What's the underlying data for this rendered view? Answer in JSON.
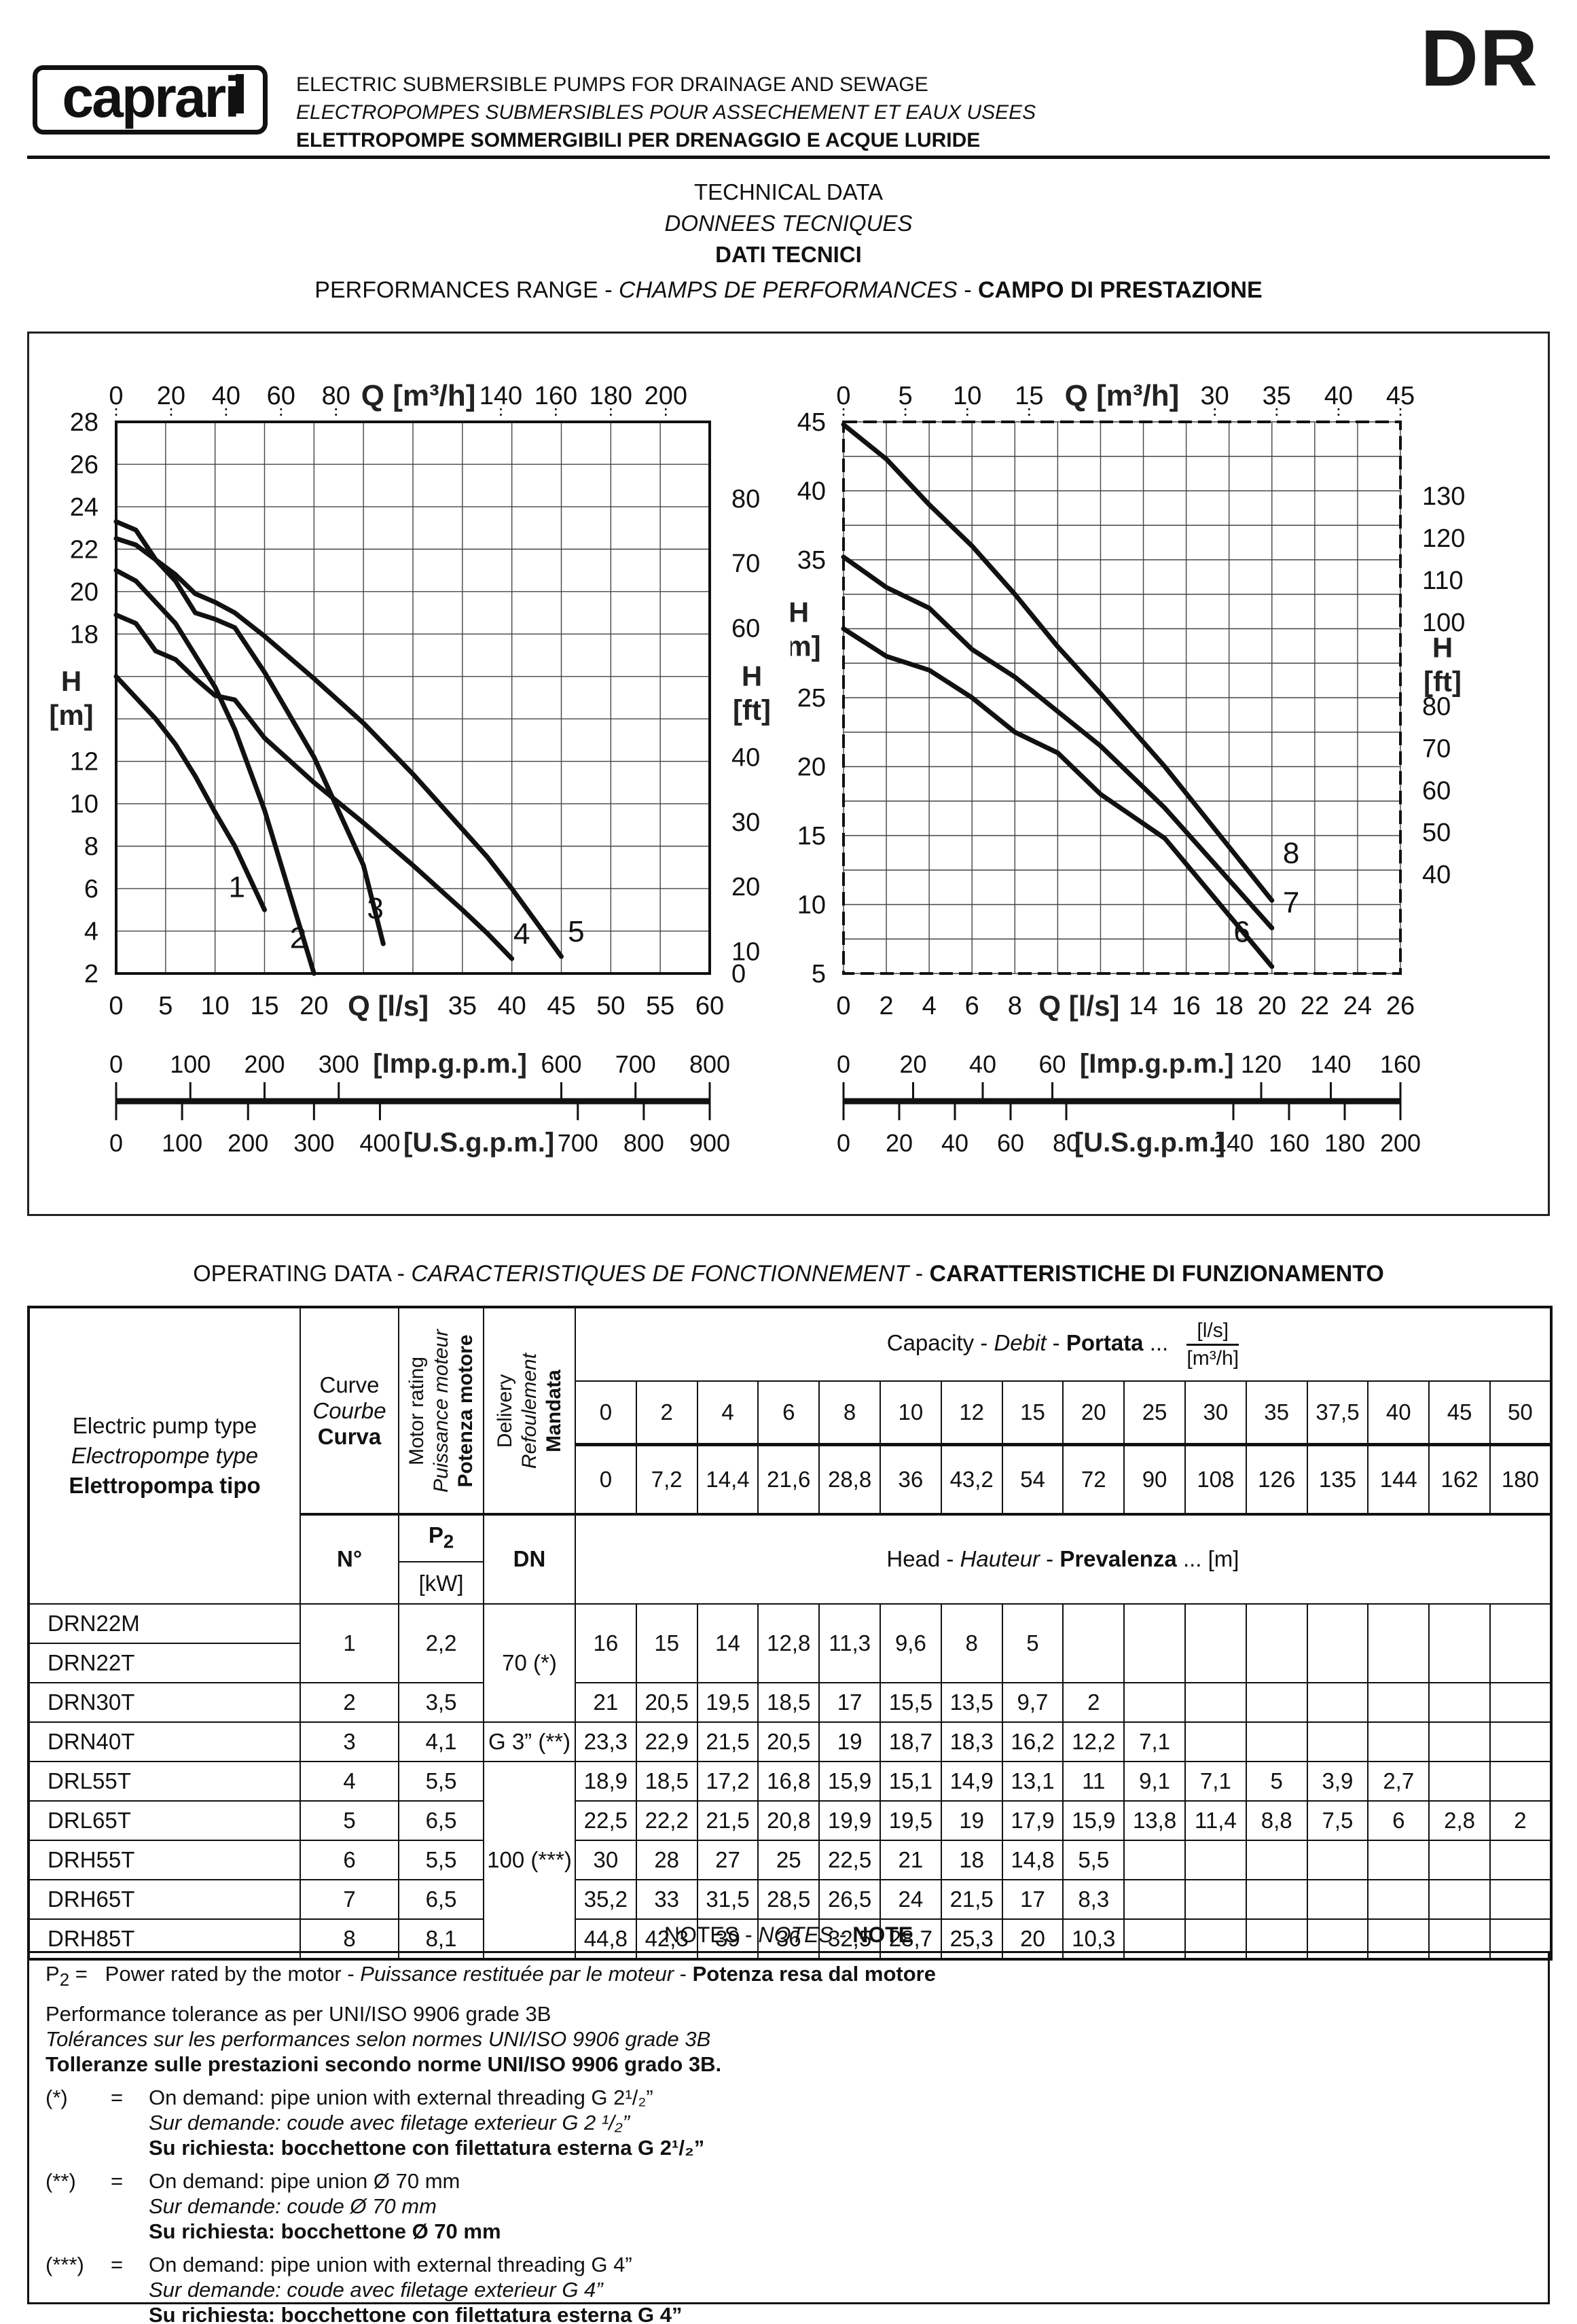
{
  "header": {
    "logo": "caprari",
    "title_en": "ELECTRIC SUBMERSIBLE PUMPS FOR DRAINAGE AND SEWAGE",
    "title_fr": "ELECTROPOMPES SUBMERSIBLES POUR ASSECHEMENT ET EAUX USEES",
    "title_it": "ELETTROPOMPE SOMMERGIBILI PER DRENAGGIO E ACQUE LURIDE",
    "code": "DR"
  },
  "titles": {
    "tech_en": "TECHNICAL DATA",
    "tech_fr": "DONNEES TECNIQUES",
    "tech_it": "DATI TECNICI",
    "sep": " - ",
    "perf_en": "PERFORMANCES RANGE",
    "perf_fr": "CHAMPS DE PERFORMANCES",
    "perf_it": "CAMPO DI PRESTAZIONE"
  },
  "chart_data": [
    {
      "type": "line",
      "title": "performance range low head pumps (curves 1-5)",
      "x": {
        "min": 0,
        "max": 60,
        "grid_step": 5,
        "ticks": [
          0,
          5,
          10,
          15,
          20,
          35,
          40,
          45,
          50,
          55,
          60
        ],
        "unit": "Q [l/s]",
        "unit_at": 27.5
      },
      "y": {
        "min": 2,
        "max": 28,
        "grid_step": 2,
        "ticks": [
          28,
          26,
          24,
          22,
          20,
          18,
          12,
          10,
          8,
          6,
          4,
          2
        ],
        "unit_top": "H",
        "unit_bot": "[m]",
        "unit_at": 15
      },
      "top": {
        "mode": "convert",
        "factor": 0.27778,
        "ticks": [
          0,
          20,
          40,
          60,
          80,
          140,
          160,
          180,
          200
        ],
        "unit": "Q [m³/h]",
        "unit_at": 110
      },
      "right": {
        "factor": 0.3048,
        "ticks": [
          80,
          70,
          60,
          40,
          30,
          20,
          10,
          0
        ],
        "unit_top": "H",
        "unit_bot": "[ft]",
        "unit_at": 50
      },
      "imp": {
        "n": 8,
        "slots": [
          0,
          1,
          2,
          3,
          6,
          7,
          8
        ],
        "labels": [
          "0",
          "100",
          "200",
          "300",
          "600",
          "700",
          "800"
        ],
        "unit": "[Imp.g.p.m.]",
        "unit_slot": 4.5
      },
      "us": {
        "n": 9,
        "slots": [
          0,
          1,
          2,
          3,
          4,
          7,
          8,
          9
        ],
        "labels": [
          "0",
          "100",
          "200",
          "300",
          "400",
          "700",
          "800",
          "900"
        ],
        "unit": "[U.S.g.p.m.]",
        "unit_slot": 5.5
      },
      "border_dash": "",
      "curves": [
        {
          "n": "1",
          "points": [
            [
              0,
              16
            ],
            [
              2,
              15
            ],
            [
              4,
              14
            ],
            [
              6,
              12.8
            ],
            [
              8,
              11.3
            ],
            [
              10,
              9.6
            ],
            [
              12,
              8
            ],
            [
              15,
              5
            ]
          ],
          "label_at": [
            12.2,
            5.6
          ]
        },
        {
          "n": "2",
          "points": [
            [
              0,
              21
            ],
            [
              2,
              20.5
            ],
            [
              4,
              19.5
            ],
            [
              6,
              18.5
            ],
            [
              8,
              17
            ],
            [
              10,
              15.5
            ],
            [
              12,
              13.5
            ],
            [
              15,
              9.7
            ],
            [
              20,
              2
            ]
          ],
          "label_at": [
            18.4,
            3.2
          ]
        },
        {
          "n": "3",
          "points": [
            [
              0,
              23.3
            ],
            [
              2,
              22.9
            ],
            [
              4,
              21.5
            ],
            [
              6,
              20.5
            ],
            [
              8,
              19
            ],
            [
              10,
              18.7
            ],
            [
              12,
              18.3
            ],
            [
              15,
              16.2
            ],
            [
              20,
              12.2
            ],
            [
              25,
              7.1
            ],
            [
              27,
              3.4
            ]
          ],
          "label_at": [
            26.2,
            4.6
          ]
        },
        {
          "n": "4",
          "points": [
            [
              0,
              18.9
            ],
            [
              2,
              18.5
            ],
            [
              4,
              17.2
            ],
            [
              6,
              16.8
            ],
            [
              8,
              15.9
            ],
            [
              10,
              15.1
            ],
            [
              12,
              14.9
            ],
            [
              15,
              13.1
            ],
            [
              20,
              11
            ],
            [
              25,
              9.1
            ],
            [
              30,
              7.1
            ],
            [
              35,
              5
            ],
            [
              37.5,
              3.9
            ],
            [
              40,
              2.7
            ]
          ],
          "label_at": [
            41,
            3.4
          ]
        },
        {
          "n": "5",
          "points": [
            [
              0,
              22.5
            ],
            [
              2,
              22.2
            ],
            [
              4,
              21.5
            ],
            [
              6,
              20.8
            ],
            [
              8,
              19.9
            ],
            [
              10,
              19.5
            ],
            [
              12,
              19
            ],
            [
              15,
              17.9
            ],
            [
              20,
              15.9
            ],
            [
              25,
              13.8
            ],
            [
              30,
              11.4
            ],
            [
              35,
              8.8
            ],
            [
              37.5,
              7.5
            ],
            [
              40,
              6
            ],
            [
              45,
              2.8
            ]
          ],
          "label_at": [
            46.5,
            3.5
          ]
        }
      ]
    },
    {
      "type": "line",
      "title": "performance range high head pumps (curves 6-8)",
      "x": {
        "min": 0,
        "max": 26,
        "grid_step": 2,
        "ticks": [
          0,
          2,
          4,
          6,
          8,
          14,
          16,
          18,
          20,
          22,
          24,
          26
        ],
        "unit": "Q [l/s]",
        "unit_at": 11
      },
      "y": {
        "min": 5,
        "max": 45,
        "grid_step": 2.5,
        "label_every": 5,
        "ticks": [
          45,
          40,
          35,
          25,
          20,
          15,
          10,
          5
        ],
        "unit_top": "H",
        "unit_bot": "[m]",
        "unit_at": 30
      },
      "top": {
        "mode": "even",
        "max": 45,
        "ticks": [
          0,
          5,
          10,
          15,
          30,
          35,
          40,
          45
        ],
        "unit": "Q [m³/h]",
        "unit_at": 22.5
      },
      "right": {
        "factor": 0.3048,
        "ticks": [
          130,
          120,
          110,
          100,
          80,
          70,
          60,
          50,
          40
        ],
        "unit_top": "H",
        "unit_bot": "[ft]",
        "unit_at": 90
      },
      "imp": {
        "n": 8,
        "slots": [
          0,
          1,
          2,
          3,
          6,
          7,
          8
        ],
        "labels": [
          "0",
          "20",
          "40",
          "60",
          "120",
          "140",
          "160"
        ],
        "unit": "[Imp.g.p.m.]",
        "unit_slot": 4.5
      },
      "us": {
        "n": 10,
        "slots": [
          0,
          1,
          2,
          3,
          4,
          7,
          8,
          9,
          10
        ],
        "labels": [
          "0",
          "20",
          "40",
          "60",
          "80",
          "140",
          "160",
          "180",
          "200"
        ],
        "unit": "[U.S.g.p.m.]",
        "unit_slot": 5.5
      },
      "border_dash": "20,9",
      "curves": [
        {
          "n": "6",
          "points": [
            [
              0,
              30
            ],
            [
              2,
              28
            ],
            [
              4,
              27
            ],
            [
              6,
              25
            ],
            [
              8,
              22.5
            ],
            [
              10,
              21
            ],
            [
              12,
              18
            ],
            [
              15,
              14.8
            ],
            [
              20,
              5.5
            ]
          ],
          "label_at": [
            18.6,
            7.3
          ]
        },
        {
          "n": "7",
          "points": [
            [
              0,
              35.2
            ],
            [
              2,
              33
            ],
            [
              4,
              31.5
            ],
            [
              6,
              28.5
            ],
            [
              8,
              26.5
            ],
            [
              10,
              24
            ],
            [
              12,
              21.5
            ],
            [
              15,
              17
            ],
            [
              20,
              8.3
            ]
          ],
          "label_at": [
            20.9,
            9.4
          ]
        },
        {
          "n": "8",
          "points": [
            [
              0,
              44.8
            ],
            [
              2,
              42.3
            ],
            [
              4,
              39
            ],
            [
              6,
              36
            ],
            [
              8,
              32.5
            ],
            [
              10,
              28.7
            ],
            [
              12,
              25.3
            ],
            [
              15,
              20
            ],
            [
              20,
              10.3
            ]
          ],
          "label_at": [
            20.9,
            13
          ]
        }
      ]
    }
  ],
  "operating": {
    "heading_en": "OPERATING DATA",
    "heading_fr": "CARACTERISTIQUES DE FONCTIONNEMENT",
    "heading_it": "CARATTERISTICHE DI FUNZIONAMENTO",
    "col_type": {
      "en": "Electric pump type",
      "fr": "Electropompe type",
      "it": "Elettropompa tipo"
    },
    "col_curve": {
      "en": "Curve",
      "fr": "Courbe",
      "it": "Curva",
      "sub": "N°"
    },
    "col_motor": {
      "en": "Motor rating",
      "fr": "Puissance moteur",
      "it": "Potenza motore",
      "sub_main": "P",
      "sub_sub": "2",
      "sub_unit": "[kW]"
    },
    "col_delivery": {
      "en": "Delivery",
      "fr": "Refoulement",
      "it": "Mandata",
      "sub": "DN"
    },
    "capacity": {
      "en": "Capacity",
      "fr": "Debit",
      "it": "Portata",
      "dots": "...",
      "unit_top": "[l/s]",
      "unit_bot": "[m³/h]"
    },
    "head": {
      "en": "Head",
      "fr": "Hauteur",
      "it": "Prevalenza",
      "suffix": "... [m]"
    },
    "ls_values": [
      "0",
      "2",
      "4",
      "6",
      "8",
      "10",
      "12",
      "15",
      "20",
      "25",
      "30",
      "35",
      "37,5",
      "40",
      "45",
      "50"
    ],
    "m3h_values": [
      "0",
      "7,2",
      "14,4",
      "21,6",
      "28,8",
      "36",
      "43,2",
      "54",
      "72",
      "90",
      "108",
      "126",
      "135",
      "144",
      "162",
      "180"
    ],
    "rows": [
      {
        "type": "DRN22M",
        "curve": "1",
        "curve_span": 2,
        "p2": "2,2",
        "p2_span": 2,
        "dn": "70 (*)",
        "dn_span": 3,
        "heads": [
          "16",
          "15",
          "14",
          "12,8",
          "11,3",
          "9,6",
          "8",
          "5",
          "",
          "",
          "",
          "",
          "",
          "",
          "",
          ""
        ],
        "heads_span": 2
      },
      {
        "type": "DRN22T"
      },
      {
        "type": "DRN30T",
        "curve": "2",
        "p2": "3,5",
        "heads": [
          "21",
          "20,5",
          "19,5",
          "18,5",
          "17",
          "15,5",
          "13,5",
          "9,7",
          "2",
          "",
          "",
          "",
          "",
          "",
          "",
          ""
        ]
      },
      {
        "type": "DRN40T",
        "curve": "3",
        "p2": "4,1",
        "dn": "G 3” (**)",
        "dn_span": 1,
        "heads": [
          "23,3",
          "22,9",
          "21,5",
          "20,5",
          "19",
          "18,7",
          "18,3",
          "16,2",
          "12,2",
          "7,1",
          "",
          "",
          "",
          "",
          "",
          ""
        ]
      },
      {
        "type": "DRL55T",
        "curve": "4",
        "p2": "5,5",
        "dn": "100 (***)",
        "dn_span": 5,
        "heads": [
          "18,9",
          "18,5",
          "17,2",
          "16,8",
          "15,9",
          "15,1",
          "14,9",
          "13,1",
          "11",
          "9,1",
          "7,1",
          "5",
          "3,9",
          "2,7",
          "",
          ""
        ]
      },
      {
        "type": "DRL65T",
        "curve": "5",
        "p2": "6,5",
        "heads": [
          "22,5",
          "22,2",
          "21,5",
          "20,8",
          "19,9",
          "19,5",
          "19",
          "17,9",
          "15,9",
          "13,8",
          "11,4",
          "8,8",
          "7,5",
          "6",
          "2,8",
          "2"
        ]
      },
      {
        "type": "DRH55T",
        "curve": "6",
        "p2": "5,5",
        "heads": [
          "30",
          "28",
          "27",
          "25",
          "22,5",
          "21",
          "18",
          "14,8",
          "5,5",
          "",
          "",
          "",
          "",
          "",
          "",
          ""
        ]
      },
      {
        "type": "DRH65T",
        "curve": "7",
        "p2": "6,5",
        "heads": [
          "35,2",
          "33",
          "31,5",
          "28,5",
          "26,5",
          "24",
          "21,5",
          "17",
          "8,3",
          "",
          "",
          "",
          "",
          "",
          "",
          ""
        ]
      },
      {
        "type": "DRH85T",
        "curve": "8",
        "p2": "8,1",
        "heads": [
          "44,8",
          "42,3",
          "39",
          "36",
          "32,5",
          "28,7",
          "25,3",
          "20",
          "10,3",
          "",
          "",
          "",
          "",
          "",
          "",
          ""
        ]
      }
    ]
  },
  "notes": {
    "title_en": "NOTES",
    "title_fr": "NOTES",
    "title_it": "NOTE",
    "sep": " - ",
    "p2_main": "P",
    "p2_sub": "2",
    "p2_eq": "=",
    "p2_en": "Power rated by the motor - ",
    "p2_fr": "Puissance restituée par le moteur",
    "p2_it": "Potenza resa dal motore",
    "dash": " - ",
    "tol_en": "Performance tolerance as per UNI/ISO 9906 grade 3B",
    "tol_fr": "Tolérances sur les performances selon normes UNI/ISO 9906 grade 3B",
    "tol_it": "Tolleranze sulle prestazioni secondo norme UNI/ISO 9906 grado 3B.",
    "footnotes": [
      {
        "mark": "(*)",
        "eq": "=",
        "en": "On demand: pipe union with external threading G 2¹/₂”",
        "fr": "Sur demande: coude avec filetage exterieur G 2 ¹/₂”",
        "it": "Su richiesta: bocchettone con filettatura esterna G 2¹/₂”"
      },
      {
        "mark": "(**)",
        "eq": "=",
        "en": "On demand: pipe union Ø 70 mm",
        "fr": "Sur demande: coude Ø 70 mm",
        "it": "Su richiesta: bocchettone Ø 70 mm"
      },
      {
        "mark": "(***)",
        "eq": "=",
        "en": "On demand: pipe union with external threading G 4”",
        "fr": "Sur demande: coude avec filetage exterieur G 4”",
        "it": "Su richiesta: bocchettone con filettatura esterna G 4”"
      }
    ]
  }
}
